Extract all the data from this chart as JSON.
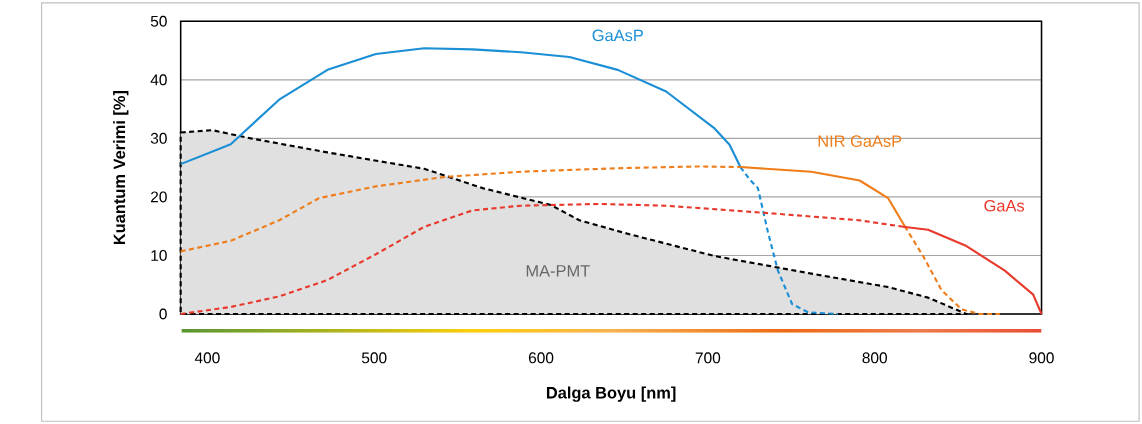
{
  "chart_data": {
    "type": "line",
    "xlabel": "Dalga Boyu [nm]",
    "ylabel": "Kuantum Verimi [%]",
    "xlim": [
      384,
      900
    ],
    "ylim": [
      0,
      50
    ],
    "xticks": [
      400,
      500,
      600,
      700,
      800,
      900
    ],
    "yticks": [
      0,
      10,
      20,
      30,
      40,
      50
    ],
    "grid": "y",
    "series": [
      {
        "name": "GaAsP",
        "color": "#1a8fd5",
        "line_style": "solid",
        "x": [
          384,
          414,
          443,
          472,
          501,
          530,
          559,
          588,
          617,
          646,
          675,
          704,
          713,
          719.5
        ],
        "values": [
          25.6,
          29,
          36.6,
          41.7,
          44.4,
          45.4,
          45.2,
          44.7,
          43.9,
          41.7,
          38,
          31.7,
          28.9,
          25.1
        ]
      },
      {
        "color": "#1a8fd5",
        "line_style": "dotted",
        "x": [
          719.5,
          725,
          730,
          736,
          742,
          750.5,
          760,
          778
        ],
        "values": [
          25.1,
          23,
          21.5,
          14,
          7.4,
          1.7,
          0.3,
          0
        ]
      },
      {
        "color": "#ef7d1a",
        "line_style": "dotted",
        "x": [
          384,
          414,
          443,
          467,
          501,
          542,
          588,
          646,
          693,
          719.5
        ],
        "values": [
          10.7,
          12.5,
          16,
          19.8,
          21.8,
          23.4,
          24.3,
          24.9,
          25.2,
          25.1
        ]
      },
      {
        "name": "NIR GaAsP",
        "color": "#ef7d1a",
        "line_style": "solid",
        "x": [
          719.5,
          762,
          791,
          808,
          818
        ],
        "values": [
          25.1,
          24.3,
          22.8,
          19.8,
          15
        ]
      },
      {
        "color": "#ef7d1a",
        "line_style": "dotted",
        "x": [
          818,
          829,
          840,
          852,
          863,
          875
        ],
        "values": [
          15,
          9.9,
          4.1,
          0.8,
          0,
          0
        ]
      },
      {
        "color": "#e8392c",
        "line_style": "dotted",
        "x": [
          384,
          414,
          443,
          472,
          501,
          530,
          559,
          588,
          635,
          675,
          733,
          791,
          817
        ],
        "values": [
          0,
          1.2,
          3,
          5.8,
          10.2,
          14.9,
          17.7,
          18.5,
          18.8,
          18.5,
          17.3,
          16,
          14.9
        ]
      },
      {
        "name": "GaAs",
        "color": "#e8392c",
        "line_style": "solid",
        "x": [
          817,
          832,
          855,
          878,
          895,
          900
        ],
        "values": [
          14.9,
          14.4,
          11.6,
          7.4,
          3.3,
          0
        ]
      },
      {
        "name": "MA-PMT",
        "type": "area",
        "color": "#000000",
        "line_style": "dotted",
        "x": [
          384,
          403,
          426,
          472,
          530,
          565,
          606,
          623,
          652,
          704,
          762,
          808,
          832,
          855
        ],
        "values": [
          31,
          31.4,
          30,
          27.6,
          24.8,
          21.5,
          18.6,
          16,
          13.7,
          9.9,
          6.9,
          4.6,
          2.8,
          0
        ]
      }
    ]
  }
}
